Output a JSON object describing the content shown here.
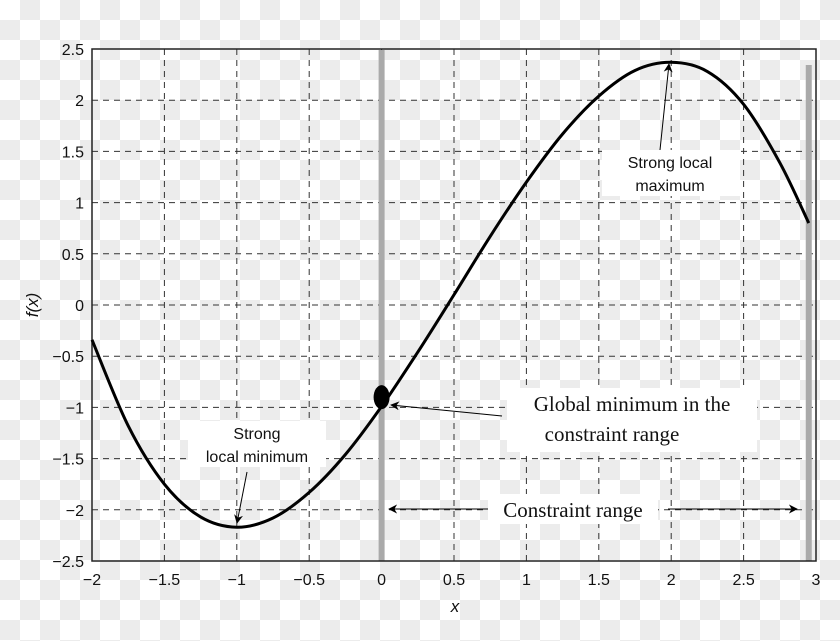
{
  "chart_data": {
    "type": "line",
    "xlabel": "x",
    "ylabel": "f(x)",
    "xlim": [
      -2,
      3
    ],
    "ylim": [
      -2.5,
      2.5
    ],
    "grid": true,
    "x_ticks": [
      "−2",
      "−1.5",
      "−1",
      "−0.5",
      "0",
      "0.5",
      "1",
      "1.5",
      "2",
      "2.5",
      "3"
    ],
    "y_ticks": [
      "2.5",
      "2",
      "1.5",
      "1",
      "0.5",
      "0",
      "−0.5",
      "−1",
      "−1.5",
      "−2",
      "−2.5"
    ],
    "x_tick_values": [
      -2,
      -1.5,
      -1,
      -0.5,
      0,
      0.5,
      1,
      1.5,
      2,
      2.5,
      3
    ],
    "y_tick_values": [
      2.5,
      2,
      1.5,
      1,
      0.5,
      0,
      -0.5,
      -1,
      -1.5,
      -2,
      -2.5
    ],
    "series": [
      {
        "x": [
          -2,
          -1.75,
          -1.5,
          -1.25,
          -1,
          -0.75,
          -0.5,
          -0.25,
          0,
          0.25,
          0.5,
          0.75,
          1,
          1.25,
          1.5,
          1.75,
          2,
          2.25,
          2.5,
          2.75,
          2.95
        ],
        "y": [
          -0.34,
          -1.18,
          -1.75,
          -2.07,
          -2.17,
          -2.08,
          -1.83,
          -1.46,
          -0.99,
          -0.46,
          0.1,
          0.67,
          1.2,
          1.67,
          2.04,
          2.29,
          2.37,
          2.28,
          1.96,
          1.39,
          0.8
        ],
        "color": "#000000"
      }
    ],
    "constraint_bounds": [
      0,
      2.95
    ],
    "constraint_color": "#aaaaaa",
    "marked_point": {
      "x": 0,
      "y": -0.9
    },
    "annotations": {
      "local_max": [
        "Strong local",
        "maximum"
      ],
      "local_min": [
        "Strong",
        "local minimum"
      ],
      "global_min": [
        "Global minimum in the",
        "constraint range"
      ],
      "constraint_range": "Constraint range"
    }
  }
}
